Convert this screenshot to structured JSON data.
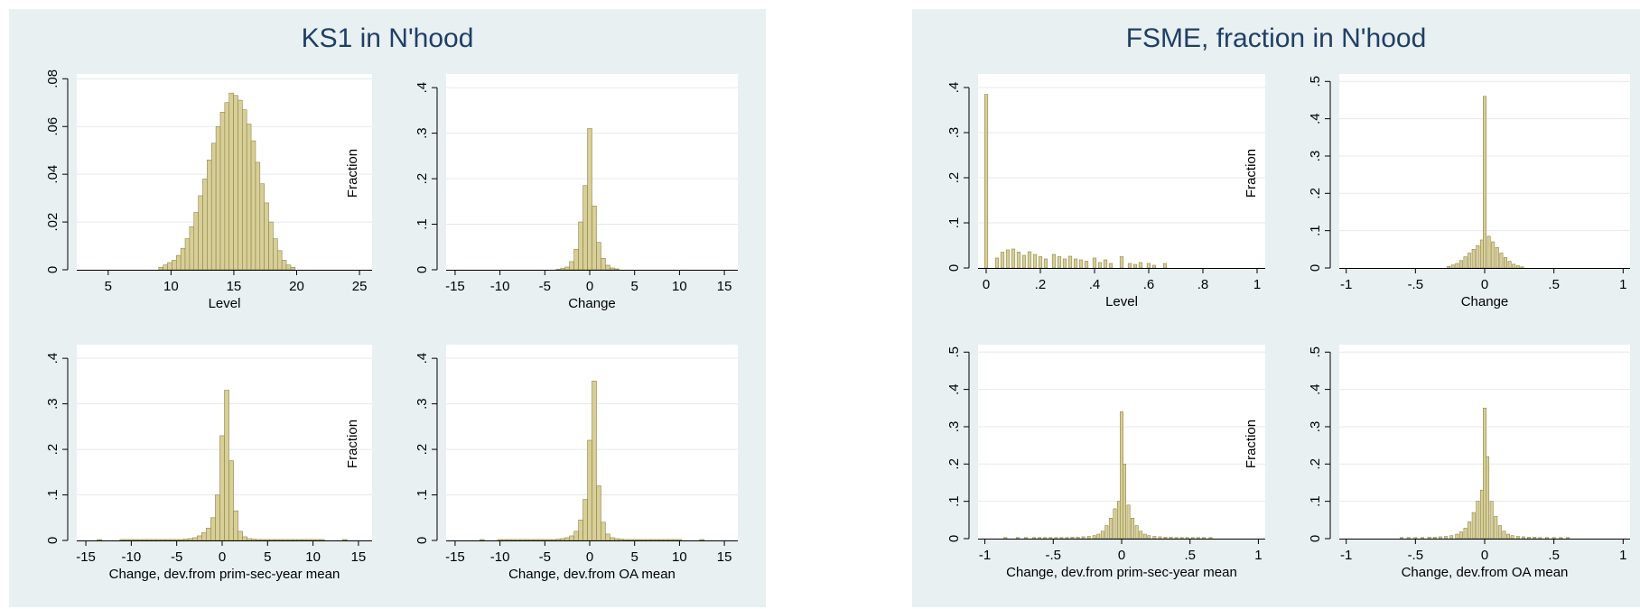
{
  "panels": [
    {
      "title": "KS1 in N'hood"
    },
    {
      "title": "FSME, fraction in N'hood"
    }
  ],
  "colors": {
    "bar_fill": "#d7cf97",
    "bar_stroke": "#8f8549",
    "plot_bg": "#ffffff",
    "panel_bg": "#e8f0f2",
    "title": "#1f3f66",
    "grid": "#e4e9ec"
  },
  "chart_data": [
    {
      "type": "bar",
      "group": "KS1 in N'hood",
      "xlabel": "Level",
      "ylabel": "Fraction",
      "xlim": [
        2.5,
        26
      ],
      "ylim": [
        0,
        0.082
      ],
      "xticks": [
        5,
        10,
        15,
        20,
        25
      ],
      "xtick_labels": [
        "5",
        "10",
        "15",
        "20",
        "25"
      ],
      "yticks": [
        0,
        0.02,
        0.04,
        0.06,
        0.08
      ],
      "ytick_labels": [
        "0",
        ".02",
        ".04",
        ".06",
        ".08"
      ],
      "bin_width": 0.35,
      "x": [
        9.2,
        9.55,
        9.9,
        10.25,
        10.6,
        10.95,
        11.3,
        11.65,
        12.0,
        12.35,
        12.7,
        13.05,
        13.4,
        13.75,
        14.1,
        14.45,
        14.8,
        15.15,
        15.5,
        15.85,
        16.2,
        16.55,
        16.9,
        17.25,
        17.6,
        17.95,
        18.3,
        18.65,
        19.0,
        19.35,
        19.7
      ],
      "values": [
        0.001,
        0.002,
        0.003,
        0.004,
        0.006,
        0.009,
        0.013,
        0.018,
        0.024,
        0.031,
        0.038,
        0.046,
        0.053,
        0.06,
        0.066,
        0.07,
        0.074,
        0.073,
        0.071,
        0.067,
        0.061,
        0.054,
        0.045,
        0.036,
        0.028,
        0.02,
        0.013,
        0.008,
        0.004,
        0.002,
        0.001
      ]
    },
    {
      "type": "bar",
      "group": "KS1 in N'hood",
      "xlabel": "Change",
      "ylabel": "Fraction",
      "xlim": [
        -16,
        16.5
      ],
      "ylim": [
        0,
        0.43
      ],
      "xticks": [
        -15,
        -10,
        -5,
        0,
        5,
        10,
        15
      ],
      "xtick_labels": [
        "-15",
        "-10",
        "-5",
        "0",
        "5",
        "10",
        "15"
      ],
      "yticks": [
        0,
        0.1,
        0.2,
        0.3,
        0.4
      ],
      "ytick_labels": [
        "0",
        ".1",
        ".2",
        ".3",
        ".4"
      ],
      "bin_width": 0.5,
      "x": [
        -3.5,
        -3.0,
        -2.5,
        -2.0,
        -1.5,
        -1.0,
        -0.5,
        0.0,
        0.5,
        1.0,
        1.5,
        2.0,
        2.5,
        3.0
      ],
      "values": [
        0.001,
        0.003,
        0.006,
        0.018,
        0.045,
        0.105,
        0.185,
        0.31,
        0.14,
        0.06,
        0.025,
        0.01,
        0.004,
        0.002
      ]
    },
    {
      "type": "bar",
      "group": "KS1 in N'hood",
      "xlabel": "Change, dev.from prim-sec-year mean",
      "ylabel": "Fraction",
      "xlim": [
        -16,
        16.5
      ],
      "ylim": [
        0,
        0.43
      ],
      "xticks": [
        -15,
        -10,
        -5,
        0,
        5,
        10,
        15
      ],
      "xtick_labels": [
        "-15",
        "-10",
        "-5",
        "0",
        "5",
        "10",
        "15"
      ],
      "yticks": [
        0,
        0.1,
        0.2,
        0.3,
        0.4
      ],
      "ytick_labels": [
        "0",
        ".1",
        ".2",
        ".3",
        ".4"
      ],
      "bin_width": 0.5,
      "x": [
        -13.5,
        -11.0,
        -10.5,
        -10.0,
        -9.5,
        -9.0,
        -8.5,
        -8.0,
        -7.5,
        -7.0,
        -6.5,
        -6.0,
        -5.5,
        -5.0,
        -4.5,
        -4.0,
        -3.5,
        -3.0,
        -2.5,
        -2.0,
        -1.5,
        -1.0,
        -0.5,
        0.0,
        0.5,
        1.0,
        1.5,
        2.0,
        2.5,
        3.0,
        3.5,
        4.0,
        4.5,
        5.0,
        5.5,
        6.0,
        6.5,
        7.0,
        7.5,
        8.0,
        8.5,
        9.0,
        9.5,
        10.0,
        10.5,
        11.0,
        13.5
      ],
      "values": [
        0.002,
        0.002,
        0.002,
        0.002,
        0.002,
        0.002,
        0.002,
        0.002,
        0.002,
        0.002,
        0.002,
        0.002,
        0.002,
        0.002,
        0.002,
        0.003,
        0.004,
        0.006,
        0.01,
        0.017,
        0.027,
        0.05,
        0.1,
        0.23,
        0.33,
        0.175,
        0.065,
        0.02,
        0.008,
        0.004,
        0.003,
        0.002,
        0.002,
        0.002,
        0.002,
        0.002,
        0.002,
        0.002,
        0.002,
        0.002,
        0.002,
        0.002,
        0.002,
        0.002,
        0.002,
        0.002,
        0.002
      ]
    },
    {
      "type": "bar",
      "group": "KS1 in N'hood",
      "xlabel": "Change, dev.from OA mean",
      "ylabel": "Fraction",
      "xlim": [
        -16,
        16.5
      ],
      "ylim": [
        0,
        0.43
      ],
      "xticks": [
        -15,
        -10,
        -5,
        0,
        5,
        10,
        15
      ],
      "xtick_labels": [
        "-15",
        "-10",
        "-5",
        "0",
        "5",
        "10",
        "15"
      ],
      "yticks": [
        0,
        0.1,
        0.2,
        0.3,
        0.4
      ],
      "ytick_labels": [
        "0",
        ".1",
        ".2",
        ".3",
        ".4"
      ],
      "bin_width": 0.5,
      "x": [
        -12.0,
        -10.0,
        -9.5,
        -9.0,
        -8.5,
        -8.0,
        -7.5,
        -7.0,
        -6.5,
        -6.0,
        -5.5,
        -5.0,
        -4.5,
        -4.0,
        -3.5,
        -3.0,
        -2.5,
        -2.0,
        -1.5,
        -1.0,
        -0.5,
        0.0,
        0.5,
        1.0,
        1.5,
        2.0,
        2.5,
        3.0,
        3.5,
        4.0,
        4.5,
        5.0,
        5.5,
        6.0,
        6.5,
        7.0,
        7.5,
        8.0,
        8.5,
        9.0,
        9.5,
        10.0,
        12.5
      ],
      "values": [
        0.002,
        0.002,
        0.002,
        0.002,
        0.002,
        0.002,
        0.002,
        0.002,
        0.002,
        0.002,
        0.002,
        0.002,
        0.002,
        0.002,
        0.003,
        0.004,
        0.006,
        0.01,
        0.02,
        0.045,
        0.09,
        0.22,
        0.35,
        0.12,
        0.04,
        0.014,
        0.006,
        0.004,
        0.003,
        0.002,
        0.002,
        0.002,
        0.002,
        0.002,
        0.002,
        0.002,
        0.002,
        0.002,
        0.002,
        0.002,
        0.002,
        0.002,
        0.002
      ]
    },
    {
      "type": "bar",
      "group": "FSME, fraction in N'hood",
      "xlabel": "Level",
      "ylabel": "Fraction",
      "xlim": [
        -0.03,
        1.03
      ],
      "ylim": [
        0,
        0.43
      ],
      "xticks": [
        0,
        0.2,
        0.4,
        0.6,
        0.8,
        1
      ],
      "xtick_labels": [
        "0",
        ".2",
        ".4",
        ".6",
        ".8",
        "1"
      ],
      "yticks": [
        0,
        0.1,
        0.2,
        0.3,
        0.4
      ],
      "ytick_labels": [
        "0",
        ".1",
        ".2",
        ".3",
        ".4"
      ],
      "bin_width": 0.012,
      "x": [
        0.0,
        0.04,
        0.06,
        0.08,
        0.1,
        0.12,
        0.14,
        0.16,
        0.18,
        0.2,
        0.22,
        0.25,
        0.27,
        0.29,
        0.31,
        0.33,
        0.35,
        0.37,
        0.4,
        0.42,
        0.44,
        0.46,
        0.5,
        0.53,
        0.55,
        0.57,
        0.6,
        0.62,
        0.66
      ],
      "values": [
        0.385,
        0.022,
        0.035,
        0.04,
        0.042,
        0.035,
        0.028,
        0.036,
        0.03,
        0.025,
        0.02,
        0.03,
        0.025,
        0.02,
        0.026,
        0.02,
        0.018,
        0.015,
        0.022,
        0.012,
        0.018,
        0.01,
        0.025,
        0.01,
        0.008,
        0.012,
        0.01,
        0.006,
        0.01
      ]
    },
    {
      "type": "bar",
      "group": "FSME, fraction in N'hood",
      "xlabel": "Change",
      "ylabel": "Fraction",
      "xlim": [
        -1.05,
        1.05
      ],
      "ylim": [
        0,
        0.52
      ],
      "xticks": [
        -1,
        -0.5,
        0,
        0.5,
        1
      ],
      "xtick_labels": [
        "-1",
        "-.5",
        "0",
        ".5",
        "1"
      ],
      "yticks": [
        0,
        0.1,
        0.2,
        0.3,
        0.4,
        0.5
      ],
      "ytick_labels": [
        "0",
        ".1",
        ".2",
        ".3",
        ".4",
        ".5"
      ],
      "bin_width": 0.022,
      "x": [
        -0.26,
        -0.23,
        -0.2,
        -0.17,
        -0.14,
        -0.11,
        -0.08,
        -0.05,
        -0.02,
        0.0,
        0.03,
        0.06,
        0.09,
        0.12,
        0.15,
        0.18,
        0.21,
        0.24,
        0.27
      ],
      "values": [
        0.004,
        0.008,
        0.012,
        0.02,
        0.03,
        0.04,
        0.05,
        0.06,
        0.075,
        0.46,
        0.085,
        0.07,
        0.055,
        0.04,
        0.028,
        0.018,
        0.01,
        0.006,
        0.003
      ]
    },
    {
      "type": "bar",
      "group": "FSME, fraction in N'hood",
      "xlabel": "Change, dev.from prim-sec-year mean",
      "ylabel": "Fraction",
      "xlim": [
        -1.05,
        1.05
      ],
      "ylim": [
        0,
        0.52
      ],
      "xticks": [
        -1,
        -0.5,
        0,
        0.5,
        1
      ],
      "xtick_labels": [
        "-1",
        "-.5",
        "0",
        ".5",
        "1"
      ],
      "yticks": [
        0,
        0.1,
        0.2,
        0.3,
        0.4,
        0.5
      ],
      "ytick_labels": [
        "0",
        ".1",
        ".2",
        ".3",
        ".4",
        ".5"
      ],
      "bin_width": 0.022,
      "x": [
        -0.85,
        -0.76,
        -0.7,
        -0.64,
        -0.6,
        -0.56,
        -0.52,
        -0.48,
        -0.44,
        -0.4,
        -0.36,
        -0.32,
        -0.28,
        -0.24,
        -0.2,
        -0.17,
        -0.14,
        -0.11,
        -0.08,
        -0.05,
        -0.02,
        0.0,
        0.02,
        0.05,
        0.08,
        0.11,
        0.14,
        0.17,
        0.2,
        0.24,
        0.28,
        0.32,
        0.36,
        0.4,
        0.44,
        0.48,
        0.52,
        0.56,
        0.6,
        0.65
      ],
      "values": [
        0.003,
        0.003,
        0.003,
        0.003,
        0.003,
        0.003,
        0.003,
        0.003,
        0.003,
        0.003,
        0.004,
        0.004,
        0.005,
        0.006,
        0.008,
        0.012,
        0.02,
        0.035,
        0.055,
        0.08,
        0.1,
        0.34,
        0.2,
        0.09,
        0.055,
        0.035,
        0.02,
        0.012,
        0.008,
        0.006,
        0.005,
        0.004,
        0.004,
        0.003,
        0.003,
        0.003,
        0.003,
        0.003,
        0.003,
        0.003
      ]
    },
    {
      "type": "bar",
      "group": "FSME, fraction in N'hood",
      "xlabel": "Change, dev.from OA mean",
      "ylabel": "Fraction",
      "xlim": [
        -1.05,
        1.05
      ],
      "ylim": [
        0,
        0.52
      ],
      "xticks": [
        -1,
        -0.5,
        0,
        0.5,
        1
      ],
      "xtick_labels": [
        "-1",
        "-.5",
        "0",
        ".5",
        "1"
      ],
      "yticks": [
        0,
        0.1,
        0.2,
        0.3,
        0.4,
        0.5
      ],
      "ytick_labels": [
        "0",
        ".1",
        ".2",
        ".3",
        ".4",
        ".5"
      ],
      "bin_width": 0.022,
      "x": [
        -0.6,
        -0.55,
        -0.5,
        -0.45,
        -0.4,
        -0.36,
        -0.32,
        -0.28,
        -0.24,
        -0.2,
        -0.17,
        -0.14,
        -0.11,
        -0.08,
        -0.05,
        -0.02,
        0.0,
        0.02,
        0.05,
        0.08,
        0.11,
        0.14,
        0.17,
        0.2,
        0.24,
        0.28,
        0.32,
        0.36,
        0.4,
        0.45,
        0.5,
        0.55,
        0.6
      ],
      "values": [
        0.003,
        0.003,
        0.003,
        0.003,
        0.004,
        0.004,
        0.005,
        0.006,
        0.008,
        0.012,
        0.018,
        0.028,
        0.045,
        0.07,
        0.1,
        0.13,
        0.35,
        0.22,
        0.1,
        0.06,
        0.035,
        0.02,
        0.012,
        0.008,
        0.006,
        0.005,
        0.004,
        0.004,
        0.003,
        0.003,
        0.003,
        0.003,
        0.003
      ]
    }
  ]
}
